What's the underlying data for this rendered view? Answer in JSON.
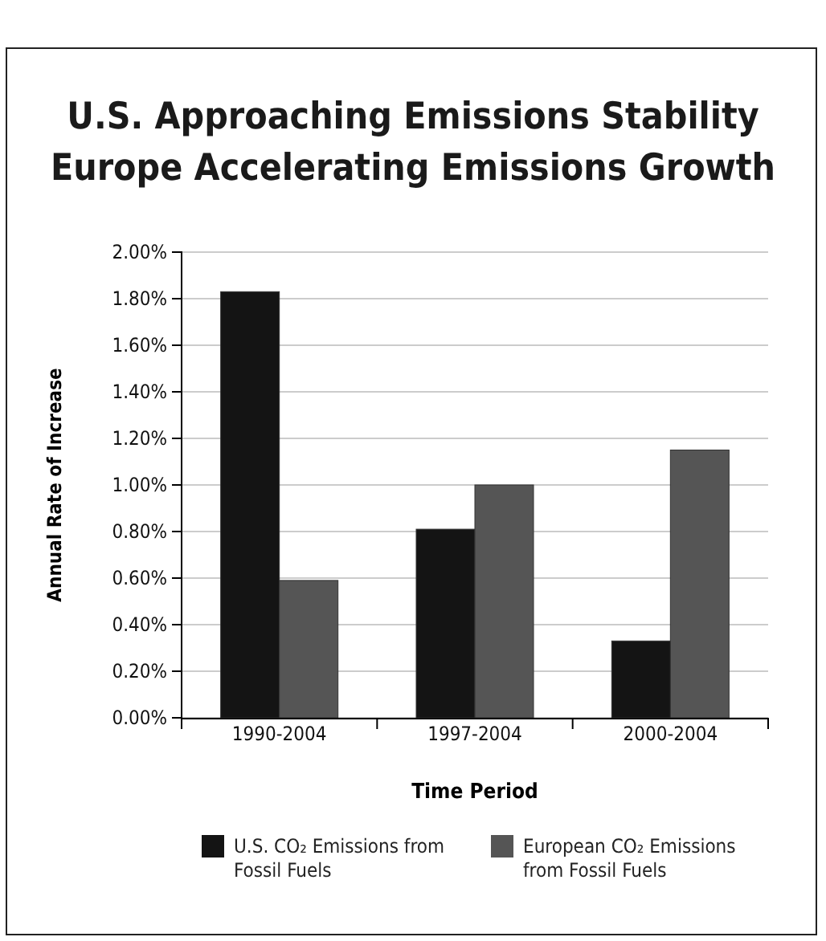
{
  "chart_data": {
    "type": "bar",
    "title": "U.S. Approaching Emissions Stability",
    "subtitle": "Europe Accelerating Emissions Growth",
    "xlabel": "Time Period",
    "ylabel": "Annual Rate of Increase",
    "categories": [
      "1990-2004",
      "1997-2004",
      "2000-2004"
    ],
    "series": [
      {
        "name": "U.S. CO₂ Emissions from Fossil Fuels",
        "color": "#141414",
        "values": [
          1.83,
          0.81,
          0.33
        ]
      },
      {
        "name": "European CO₂ Emissions from Fossil Fuels",
        "color": "#555555",
        "values": [
          0.59,
          1.0,
          1.15
        ]
      }
    ],
    "ylim": [
      0,
      2
    ],
    "yticks": [
      {
        "value": 0,
        "label": "0.00%"
      },
      {
        "value": 0.2,
        "label": "0.20%"
      },
      {
        "value": 0.4,
        "label": "0.40%"
      },
      {
        "value": 0.6,
        "label": "0.60%"
      },
      {
        "value": 0.8,
        "label": "0.80%"
      },
      {
        "value": 1,
        "label": "1.00%"
      },
      {
        "value": 1.2,
        "label": "1.20%"
      },
      {
        "value": 1.4,
        "label": "1.40%"
      },
      {
        "value": 1.6,
        "label": "1.60%"
      },
      {
        "value": 1.8,
        "label": "1.80%"
      },
      {
        "value": 2,
        "label": "2.00%"
      }
    ],
    "grid": "y",
    "legend": "bottom"
  }
}
